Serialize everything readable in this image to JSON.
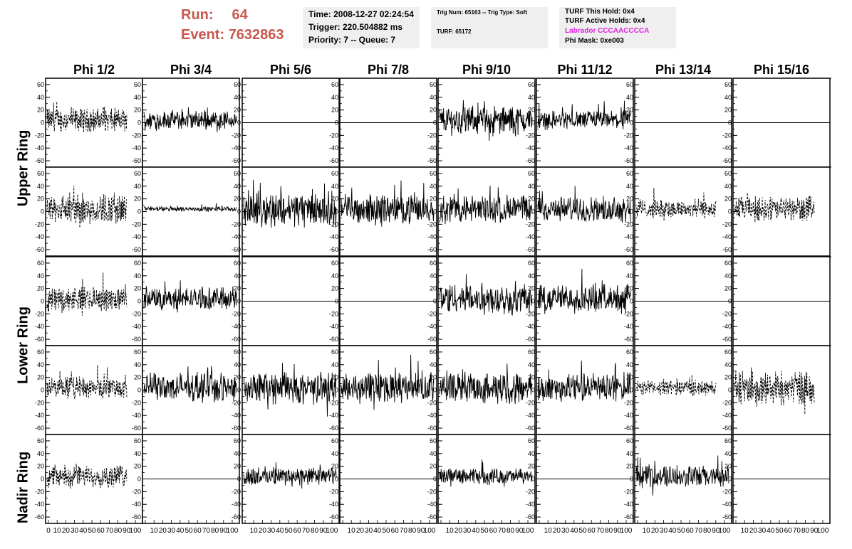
{
  "header": {
    "run_label": "Run:",
    "run_value": "64",
    "event_label": "Event:",
    "event_value": "7632863",
    "time": "Time: 2008-12-27 02:24:54",
    "trigger": "Trigger: 220.504882 ms",
    "priority": "Priority: 7 -- Queue: 7",
    "trig_num": "Trig Num: 65163 -- Trig Type: Soft",
    "turf": "TURF: 65172",
    "turf_this_hold": "TURF This Hold: 0x4",
    "turf_active_holds": "TURF Active Holds: 0x4",
    "labrador": "Labrador CCCAACCCCA",
    "phi_mask": "Phi Mask: 0xe003"
  },
  "colors": {
    "run_text": "#c8584f",
    "labrador_text": "#e020e0",
    "info_bg": "#efefef"
  },
  "phi_columns": [
    "Phi 1/2",
    "Phi 3/4",
    "Phi 5/6",
    "Phi 7/8",
    "Phi 9/10",
    "Phi 11/12",
    "Phi 13/14",
    "Phi 15/16"
  ],
  "rings": [
    "Upper Ring",
    "Lower Ring",
    "Nadir Ring"
  ],
  "y_ticks": [
    "60",
    "40",
    "20",
    "0",
    "-20",
    "-40",
    "-60"
  ],
  "x_ticks_first": [
    "0",
    "10",
    "20",
    "30",
    "40",
    "50",
    "60",
    "70",
    "80",
    "90",
    "100"
  ],
  "x_ticks_other": [
    "10",
    "20",
    "30",
    "40",
    "50",
    "60",
    "70",
    "80",
    "90",
    "100"
  ],
  "panel_rows": [
    [
      "dashed:15",
      "solid:12",
      "flat",
      "flat",
      "solid:18",
      "solid:12",
      "flat",
      "flat"
    ],
    [
      "dashed:20",
      "solid:3",
      "solid:22",
      "solid:18",
      "solid:18",
      "solid:16",
      "dashed:12",
      "dashed:16"
    ],
    [
      "dashed:15",
      "solid:14",
      "flat",
      "flat",
      "solid:20",
      "solid:18",
      "flat",
      "flat"
    ],
    [
      "dashed:14",
      "solid:18",
      "solid:20",
      "solid:20",
      "solid:20",
      "solid:18",
      "dashed:10",
      "dashed:22"
    ],
    [
      "dashed:14",
      "flat",
      "solid:12",
      "flat",
      "solid:10",
      "flat",
      "solid:14",
      "flat"
    ]
  ]
}
